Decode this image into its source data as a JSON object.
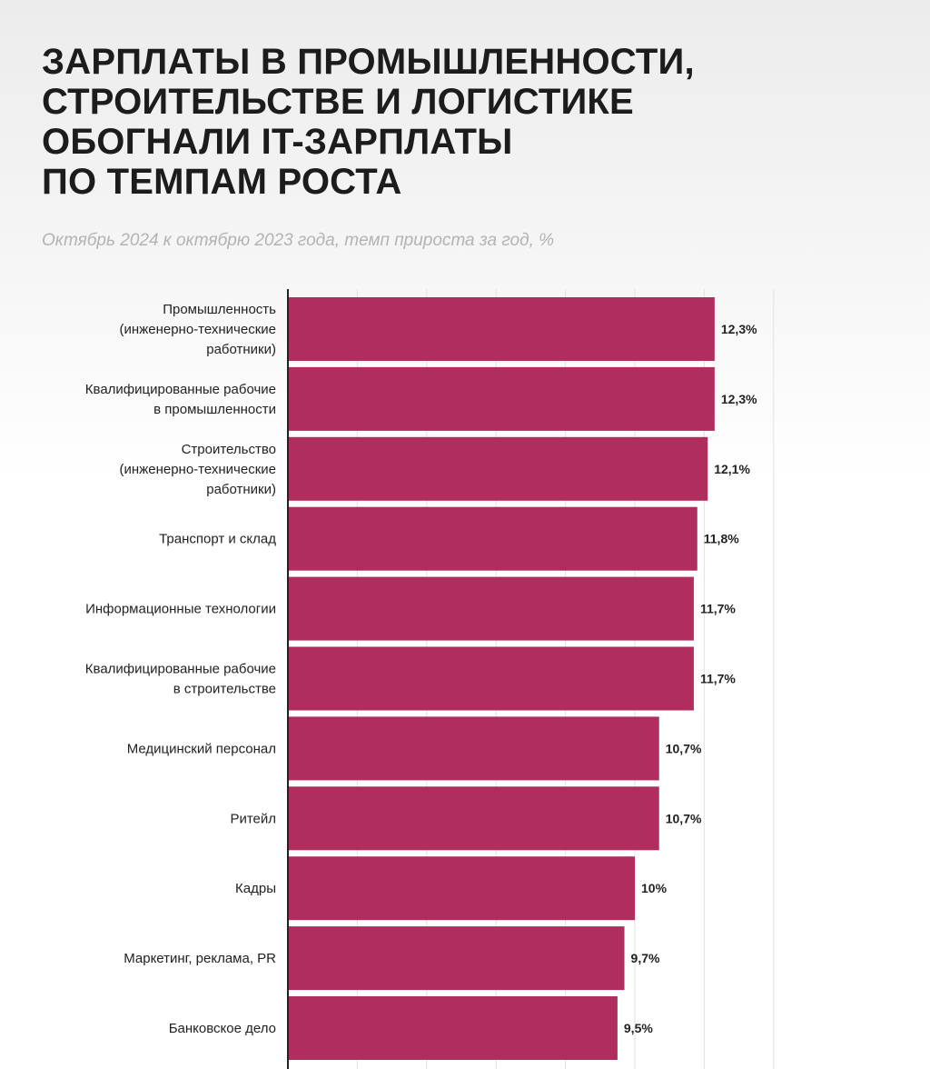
{
  "header": {
    "title_lines": [
      "ЗАРПЛАТЫ В ПРОМЫШЛЕННОСТИ,",
      "СТРОИТЕЛЬСТВЕ И ЛОГИСТИКЕ",
      "ОБОГНАЛИ IT-ЗАРПЛАТЫ",
      "ПО ТЕМПАМ РОСТА"
    ],
    "subtitle": "Октябрь 2024 к октябрю 2023 года, темп прироста за год, %"
  },
  "colors": {
    "bar": "#b02e5e",
    "gridline": "#e2e2e2",
    "axis": "#222222",
    "subtitle": "#b3b3b3"
  },
  "chart_data": {
    "type": "bar",
    "orientation": "horizontal",
    "title": "ЗАРПЛАТЫ В ПРОМЫШЛЕННОСТИ, СТРОИТЕЛЬСТВЕ И ЛОГИСТИКЕ ОБОГНАЛИ IT-ЗАРПЛАТЫ ПО ТЕМПАМ РОСТА",
    "subtitle": "Октябрь 2024 к октябрю 2023 года, темп прироста за год, %",
    "categories": [
      [
        "Промышленность",
        "(инженерно-технические",
        "работники)"
      ],
      [
        "Квалифицированные рабочие",
        "в промышленности"
      ],
      [
        "Строительство",
        "(инженерно-технические",
        "работники)"
      ],
      [
        "Транспорт и склад"
      ],
      [
        "Информационные технологии"
      ],
      [
        "Квалифицированные рабочие",
        "в строительстве"
      ],
      [
        "Медицинский персонал"
      ],
      [
        "Ритейл"
      ],
      [
        "Кадры"
      ],
      [
        "Маркетинг, реклама, PR"
      ],
      [
        "Банковское дело"
      ]
    ],
    "values": [
      12.3,
      12.3,
      12.1,
      11.8,
      11.7,
      11.7,
      10.7,
      10.7,
      10,
      9.7,
      9.5
    ],
    "value_labels": [
      "12,3%",
      "12,3%",
      "12,1%",
      "11,8%",
      "11,7%",
      "11,7%",
      "10,7%",
      "10,7%",
      "10%",
      "9,7%",
      "9,5%"
    ],
    "xlim": [
      0,
      14
    ],
    "grid": true,
    "legend": "none"
  }
}
